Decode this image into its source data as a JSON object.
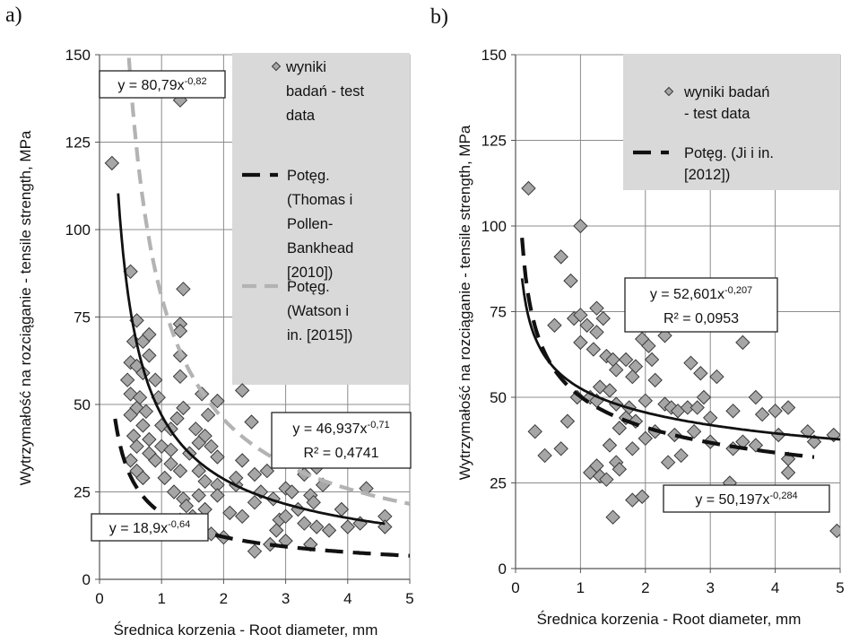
{
  "chart_data": [
    {
      "panel_label": "a)",
      "type": "scatter",
      "xlabel": "Średnica korzenia - Root diameter, mm",
      "ylabel": "Wytrzymałość na rozciąganie - tensile strength, MPa",
      "xlim": [
        0,
        5
      ],
      "ylim": [
        0,
        150
      ],
      "xticks": [
        "0",
        "1",
        "2",
        "3",
        "4",
        "5"
      ],
      "yticks": [
        "0",
        "25",
        "50",
        "75",
        "100",
        "125",
        "150"
      ],
      "grid": true,
      "legend": {
        "placement": "top-right",
        "entries": [
          {
            "lines": [
              "wyniki",
              "badań - test",
              "data"
            ],
            "marker": "diamond"
          },
          {
            "lines": [
              "Potęg.",
              "(Thomas i",
              "Pollen-",
              "Bankhead",
              "[2010])"
            ],
            "marker": "dash-black"
          },
          {
            "lines": [
              "Potęg.",
              "(Watson i",
              "in. [2015])"
            ],
            "marker": "dash-gray"
          }
        ]
      },
      "points": [
        [
          0.2,
          119
        ],
        [
          1.3,
          137
        ],
        [
          0.5,
          88
        ],
        [
          1.35,
          83
        ],
        [
          0.6,
          74
        ],
        [
          1.3,
          73
        ],
        [
          0.55,
          68
        ],
        [
          0.7,
          68
        ],
        [
          1.3,
          71
        ],
        [
          0.8,
          70
        ],
        [
          0.5,
          62
        ],
        [
          0.6,
          61
        ],
        [
          0.8,
          64
        ],
        [
          1.3,
          64
        ],
        [
          0.7,
          59
        ],
        [
          0.45,
          57
        ],
        [
          0.9,
          57
        ],
        [
          1.3,
          58
        ],
        [
          0.5,
          53
        ],
        [
          0.65,
          52
        ],
        [
          0.95,
          52
        ],
        [
          1.65,
          53
        ],
        [
          1.9,
          51
        ],
        [
          0.6,
          49
        ],
        [
          0.75,
          48
        ],
        [
          1.35,
          49
        ],
        [
          0.5,
          47
        ],
        [
          1.25,
          46
        ],
        [
          1.75,
          47
        ],
        [
          0.7,
          44
        ],
        [
          1.0,
          44
        ],
        [
          1.15,
          43
        ],
        [
          1.55,
          43
        ],
        [
          0.55,
          41
        ],
        [
          0.8,
          40
        ],
        [
          1.7,
          41
        ],
        [
          0.6,
          38
        ],
        [
          1.0,
          38
        ],
        [
          1.15,
          37
        ],
        [
          1.6,
          39
        ],
        [
          1.8,
          38
        ],
        [
          0.8,
          36
        ],
        [
          1.45,
          36
        ],
        [
          1.9,
          35
        ],
        [
          0.5,
          34
        ],
        [
          0.9,
          34
        ],
        [
          1.15,
          33
        ],
        [
          2.3,
          34
        ],
        [
          0.6,
          31
        ],
        [
          1.3,
          31
        ],
        [
          1.6,
          31
        ],
        [
          2.5,
          30
        ],
        [
          0.7,
          29
        ],
        [
          1.05,
          29
        ],
        [
          1.7,
          28
        ],
        [
          1.9,
          27
        ],
        [
          2.2,
          27
        ],
        [
          1.2,
          25
        ],
        [
          1.6,
          24
        ],
        [
          2.6,
          25
        ],
        [
          1.35,
          23
        ],
        [
          1.9,
          24
        ],
        [
          1.4,
          21
        ],
        [
          1.7,
          20
        ],
        [
          2.1,
          19
        ],
        [
          2.5,
          22
        ],
        [
          1.5,
          18
        ],
        [
          2.3,
          18
        ],
        [
          2.9,
          17
        ],
        [
          1.3,
          17
        ],
        [
          1.8,
          13
        ],
        [
          2.0,
          12
        ],
        [
          2.5,
          8
        ],
        [
          2.75,
          10
        ],
        [
          3.0,
          11
        ],
        [
          2.45,
          45
        ],
        [
          2.3,
          54
        ],
        [
          3.0,
          26
        ],
        [
          3.1,
          25
        ],
        [
          3.4,
          24
        ],
        [
          3.45,
          22
        ],
        [
          3.2,
          20
        ],
        [
          3.0,
          18
        ],
        [
          3.3,
          16
        ],
        [
          3.5,
          15
        ],
        [
          3.7,
          14
        ],
        [
          3.4,
          10
        ],
        [
          3.6,
          27
        ],
        [
          3.9,
          20
        ],
        [
          4.0,
          15
        ],
        [
          4.2,
          16
        ],
        [
          4.3,
          26
        ],
        [
          4.6,
          18
        ],
        [
          4.6,
          15
        ],
        [
          2.8,
          23
        ],
        [
          3.3,
          30
        ],
        [
          3.5,
          32
        ],
        [
          2.7,
          31
        ],
        [
          2.2,
          29
        ],
        [
          2.85,
          14
        ]
      ],
      "series": [
        {
          "name": "y = 46,937x-0,71",
          "a": 46.937,
          "b": -0.71,
          "x_range": [
            0.3,
            4.6
          ],
          "style": "solid-black"
        },
        {
          "name": "Potęg. (Thomas i Pollen-Bankhead [2010])",
          "a": 18.9,
          "b": -0.64,
          "x_range": [
            0.25,
            5.0
          ],
          "style": "dash-black"
        },
        {
          "name": "Potęg. (Watson i in. [2015])",
          "a": 80.79,
          "b": -0.82,
          "x_range": [
            0.45,
            5.0
          ],
          "style": "dash-gray"
        }
      ],
      "annotations": [
        {
          "name": "eq-watson",
          "base": "y = 80,79x",
          "exp": "-0,82"
        },
        {
          "name": "eq-fit-a",
          "base": "y = 46,937x",
          "exp": "-0,71",
          "r2": "R² = 0,4741"
        },
        {
          "name": "eq-thomas",
          "base": "y = 18,9x",
          "exp": "-0,64"
        }
      ]
    },
    {
      "panel_label": "b)",
      "type": "scatter",
      "xlabel": "Średnica korzenia - Root diameter, mm",
      "ylabel": "Wytrzymałość na rozciąganie - tensile strength, MPa",
      "xlim": [
        0,
        5
      ],
      "ylim": [
        0,
        150
      ],
      "xticks": [
        "0",
        "1",
        "2",
        "3",
        "4",
        "5"
      ],
      "yticks": [
        "0",
        "25",
        "50",
        "75",
        "100",
        "125",
        "150"
      ],
      "grid": true,
      "legend": {
        "placement": "top-right",
        "entries": [
          {
            "lines": [
              "wyniki badań",
              "- test data"
            ],
            "marker": "diamond"
          },
          {
            "lines": [
              "Potęg. (Ji i in.",
              "[2012])"
            ],
            "marker": "dash-black"
          }
        ]
      },
      "points": [
        [
          0.2,
          111
        ],
        [
          1.0,
          100
        ],
        [
          0.7,
          91
        ],
        [
          0.85,
          84
        ],
        [
          0.9,
          73
        ],
        [
          1.0,
          74
        ],
        [
          1.25,
          76
        ],
        [
          1.35,
          73
        ],
        [
          0.6,
          71
        ],
        [
          1.1,
          71
        ],
        [
          1.25,
          69
        ],
        [
          1.0,
          66
        ],
        [
          1.2,
          64
        ],
        [
          1.4,
          62
        ],
        [
          1.5,
          61
        ],
        [
          1.7,
          61
        ],
        [
          1.95,
          67
        ],
        [
          2.05,
          65
        ],
        [
          2.3,
          68
        ],
        [
          2.1,
          61
        ],
        [
          1.85,
          59
        ],
        [
          1.55,
          58
        ],
        [
          1.8,
          56
        ],
        [
          2.15,
          55
        ],
        [
          2.7,
          60
        ],
        [
          2.85,
          57
        ],
        [
          3.1,
          56
        ],
        [
          3.5,
          66
        ],
        [
          1.3,
          53
        ],
        [
          1.45,
          52
        ],
        [
          1.15,
          50
        ],
        [
          0.95,
          50
        ],
        [
          1.25,
          49
        ],
        [
          1.55,
          48
        ],
        [
          1.75,
          47
        ],
        [
          2.0,
          49
        ],
        [
          2.3,
          48
        ],
        [
          2.4,
          47
        ],
        [
          2.5,
          46
        ],
        [
          2.65,
          47
        ],
        [
          2.8,
          47
        ],
        [
          2.9,
          50
        ],
        [
          3.0,
          44
        ],
        [
          3.35,
          46
        ],
        [
          3.7,
          50
        ],
        [
          3.8,
          45
        ],
        [
          4.0,
          46
        ],
        [
          4.2,
          47
        ],
        [
          4.9,
          39
        ],
        [
          4.5,
          40
        ],
        [
          1.7,
          44
        ],
        [
          1.85,
          43
        ],
        [
          2.0,
          38
        ],
        [
          1.8,
          35
        ],
        [
          1.6,
          41
        ],
        [
          2.15,
          40
        ],
        [
          2.45,
          39
        ],
        [
          2.75,
          40
        ],
        [
          3.0,
          37
        ],
        [
          3.5,
          37
        ],
        [
          3.7,
          36
        ],
        [
          4.05,
          39
        ],
        [
          4.2,
          32
        ],
        [
          4.2,
          28
        ],
        [
          4.6,
          37
        ],
        [
          0.3,
          40
        ],
        [
          0.45,
          33
        ],
        [
          0.7,
          35
        ],
        [
          0.8,
          43
        ],
        [
          1.15,
          28
        ],
        [
          1.25,
          30
        ],
        [
          1.3,
          27
        ],
        [
          1.4,
          26
        ],
        [
          1.5,
          15
        ],
        [
          1.55,
          31
        ],
        [
          1.8,
          20
        ],
        [
          1.95,
          21
        ],
        [
          2.35,
          31
        ],
        [
          2.55,
          33
        ],
        [
          2.6,
          19
        ],
        [
          3.3,
          25
        ],
        [
          3.35,
          35
        ],
        [
          4.95,
          11
        ],
        [
          1.45,
          36
        ],
        [
          1.6,
          29
        ]
      ],
      "series": [
        {
          "name": "y = 52,601x-0,207",
          "a": 52.601,
          "b": -0.207,
          "x_range": [
            0.1,
            5.0
          ],
          "style": "solid-black"
        },
        {
          "name": "Potęg. (Ji i in. [2012])",
          "a": 50.197,
          "b": -0.284,
          "x_range": [
            0.1,
            4.6
          ],
          "style": "dash-black"
        }
      ],
      "annotations": [
        {
          "name": "eq-fit-b",
          "base": "y = 52,601x",
          "exp": "-0,207",
          "r2": "R² = 0,0953"
        },
        {
          "name": "eq-ji",
          "base": "y = 50,197x",
          "exp": "-0,284"
        }
      ]
    }
  ]
}
